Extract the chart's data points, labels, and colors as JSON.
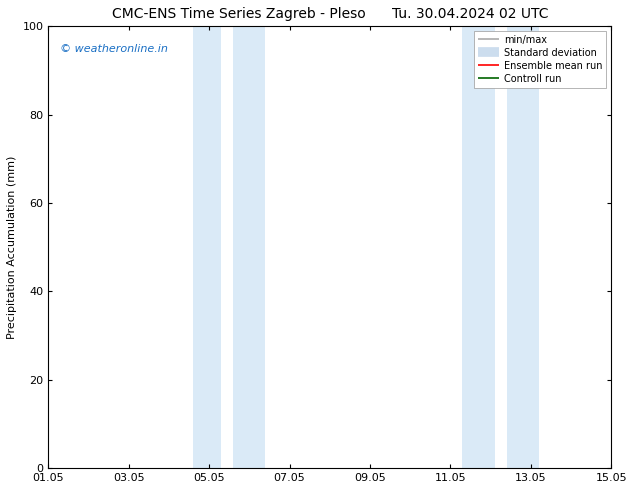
{
  "title_left": "CMC-ENS Time Series Zagreb - Pleso",
  "title_right": "Tu. 30.04.2024 02 UTC",
  "ylabel": "Precipitation Accumulation (mm)",
  "xlim": [
    0,
    14
  ],
  "ylim": [
    0,
    100
  ],
  "yticks": [
    0,
    20,
    40,
    60,
    80,
    100
  ],
  "xtick_labels": [
    "01.05",
    "03.05",
    "05.05",
    "07.05",
    "09.05",
    "11.05",
    "13.05",
    "15.05"
  ],
  "xtick_positions": [
    0,
    2,
    4,
    6,
    8,
    10,
    12,
    14
  ],
  "shaded_regions": [
    [
      3.6,
      4.3
    ],
    [
      4.6,
      5.4
    ],
    [
      10.3,
      11.1
    ],
    [
      11.4,
      12.2
    ]
  ],
  "shade_color": "#daeaf7",
  "watermark_text": "© weatheronline.in",
  "watermark_color": "#1a6fc4",
  "legend_items": [
    {
      "label": "min/max",
      "color": "#aaaaaa",
      "lw": 1.2
    },
    {
      "label": "Standard deviation",
      "color": "#ccddee",
      "lw": 7
    },
    {
      "label": "Ensemble mean run",
      "color": "red",
      "lw": 1.2
    },
    {
      "label": "Controll run",
      "color": "darkgreen",
      "lw": 1.2
    }
  ],
  "bg_color": "#ffffff",
  "title_fontsize": 10,
  "axis_fontsize": 8,
  "tick_fontsize": 8,
  "watermark_fontsize": 8
}
